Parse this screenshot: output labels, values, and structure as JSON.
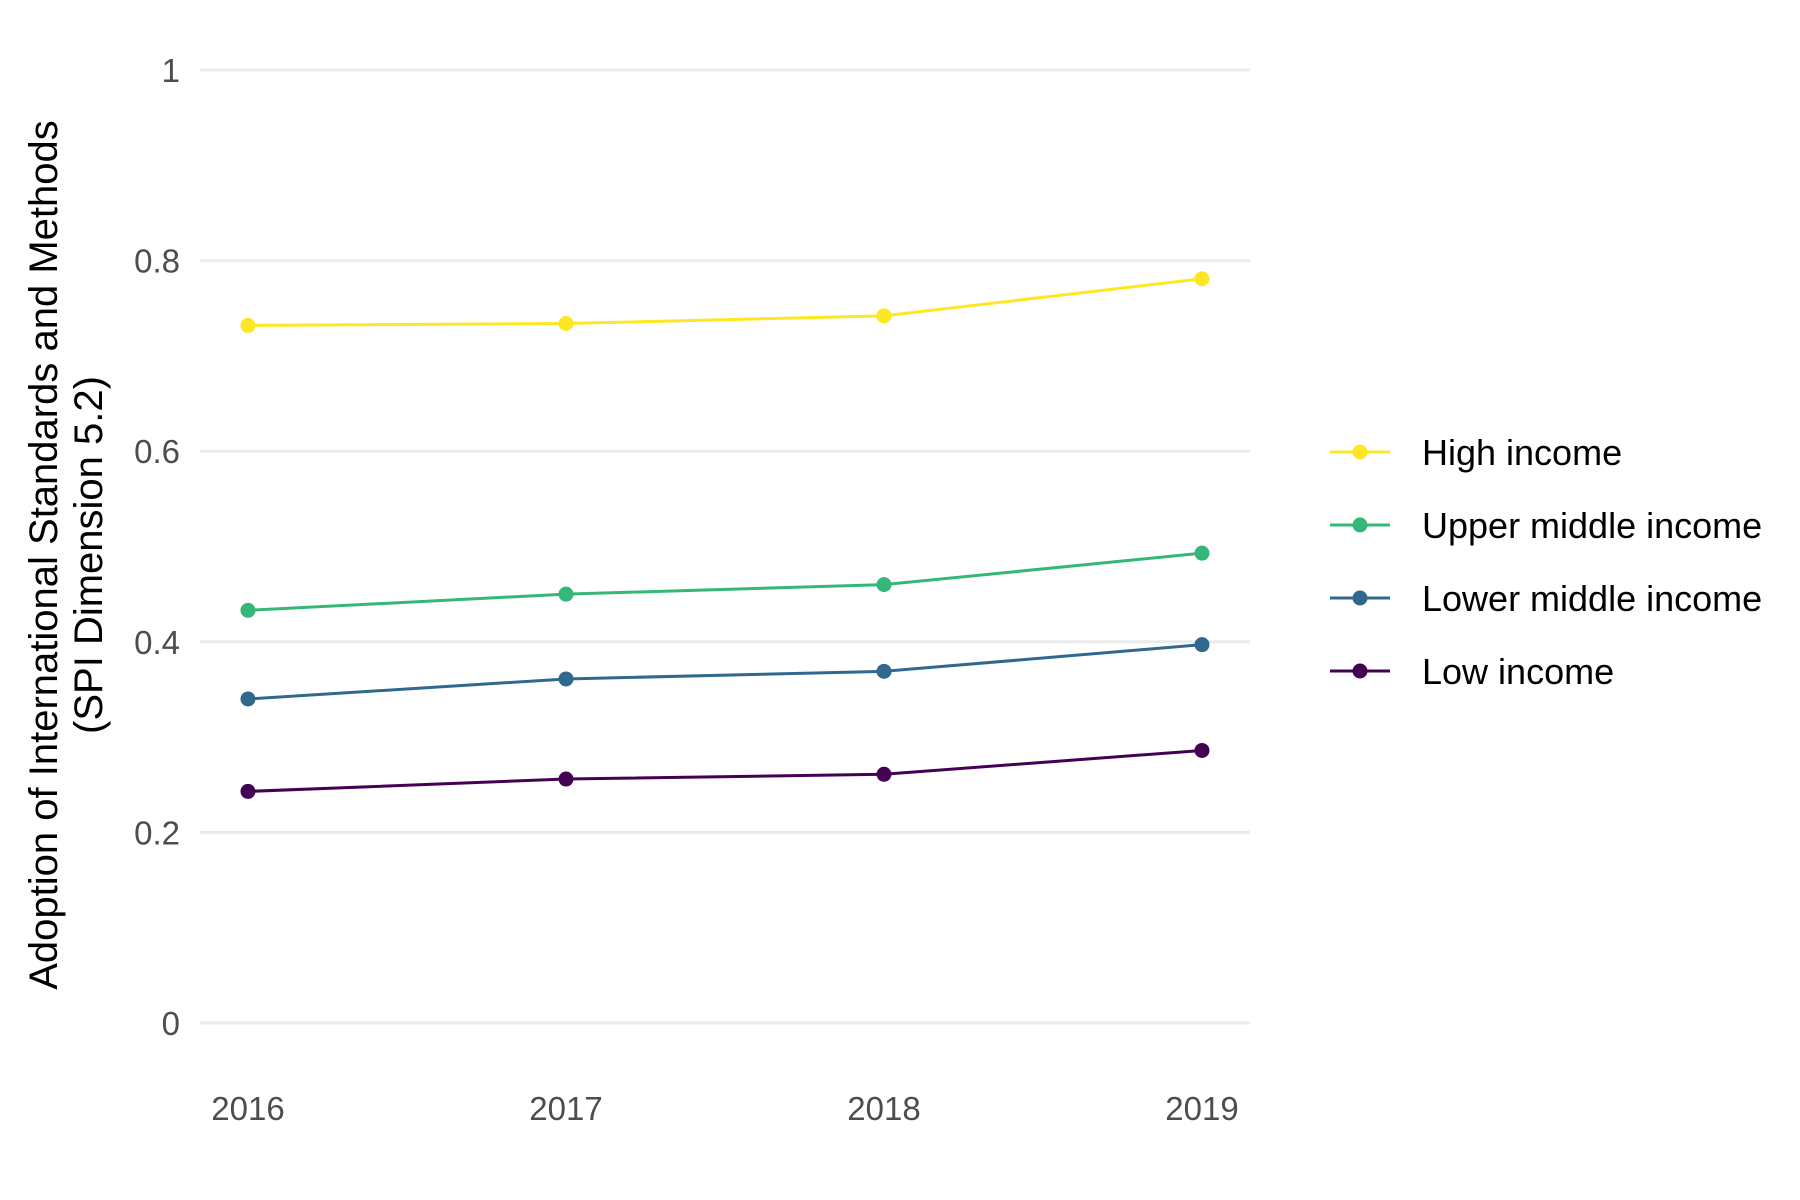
{
  "chart_data": {
    "type": "line",
    "title": "",
    "xlabel": "",
    "ylabel_lines": [
      "Adoption of International Standards and Methods",
      "(SPI Dimension 5.2)"
    ],
    "x": [
      "2016",
      "2017",
      "2018",
      "2019"
    ],
    "ylim": [
      0,
      1
    ],
    "yticks": [
      {
        "value": 0,
        "label": "0"
      },
      {
        "value": 0.2,
        "label": "0.2"
      },
      {
        "value": 0.4,
        "label": "0.4"
      },
      {
        "value": 0.6,
        "label": "0.6"
      },
      {
        "value": 0.8,
        "label": "0.8"
      },
      {
        "value": 1,
        "label": "1"
      }
    ],
    "grid": true,
    "legend_position": "right",
    "series": [
      {
        "name": "High income",
        "color": "#FDE725",
        "values": [
          0.732,
          0.734,
          0.742,
          0.781
        ]
      },
      {
        "name": "Upper middle income",
        "color": "#35B779",
        "values": [
          0.433,
          0.45,
          0.46,
          0.493
        ]
      },
      {
        "name": "Lower middle income",
        "color": "#31688E",
        "values": [
          0.34,
          0.361,
          0.369,
          0.397
        ]
      },
      {
        "name": "Low income",
        "color": "#440154",
        "values": [
          0.243,
          0.256,
          0.261,
          0.286
        ]
      }
    ]
  }
}
